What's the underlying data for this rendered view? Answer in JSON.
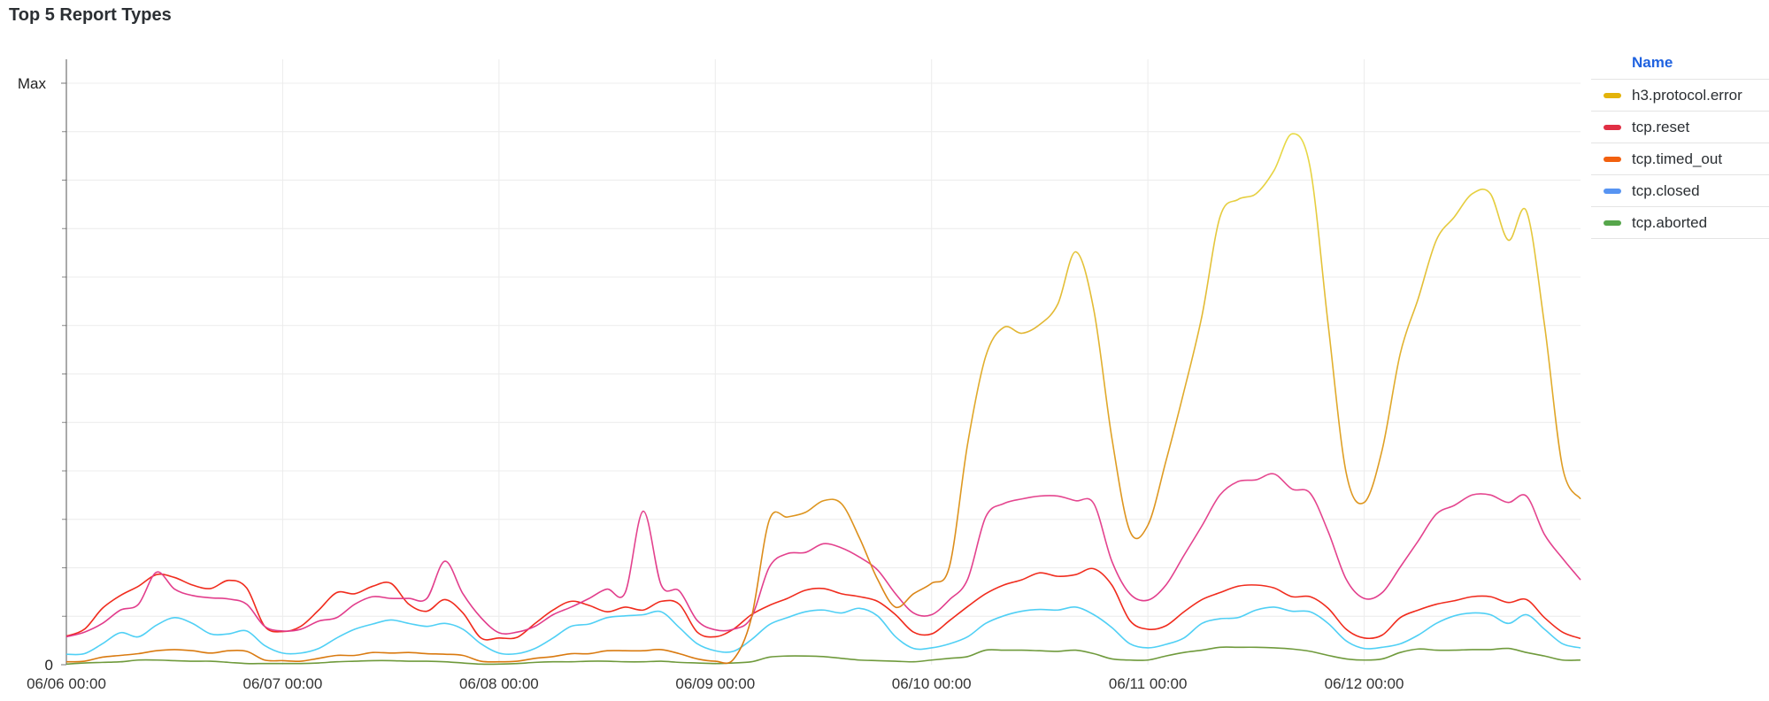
{
  "title": "Top 5 Report Types",
  "legend": {
    "header": "Name",
    "items": [
      {
        "label": "h3.protocol.error",
        "color": "#e3b30a"
      },
      {
        "label": "tcp.reset",
        "color": "#e02f44"
      },
      {
        "label": "tcp.timed_out",
        "color": "#f2600f"
      },
      {
        "label": "tcp.closed",
        "color": "#5794f2"
      },
      {
        "label": "tcp.aborted",
        "color": "#56a64b"
      }
    ]
  },
  "chart_data": {
    "type": "line",
    "title": "Top 5 Report Types",
    "xlabel": "",
    "ylabel": "",
    "ylim": [
      0,
      1
    ],
    "y_tick_labels": [
      "0",
      "Max"
    ],
    "x_ticks": [
      "06/06 00:00",
      "06/07 00:00",
      "06/08 00:00",
      "06/09 00:00",
      "06/10 00:00",
      "06/11 00:00",
      "06/12 00:00"
    ],
    "xlim": [
      "06/06 00:00",
      "06/13 00:00"
    ],
    "grid": true,
    "legend_position": "right",
    "x": [
      "06/06 00:00",
      "06/06 02:00",
      "06/06 04:00",
      "06/06 06:00",
      "06/06 08:00",
      "06/06 10:00",
      "06/06 12:00",
      "06/06 14:00",
      "06/06 16:00",
      "06/06 18:00",
      "06/06 20:00",
      "06/06 22:00",
      "06/07 00:00",
      "06/07 02:00",
      "06/07 04:00",
      "06/07 06:00",
      "06/07 08:00",
      "06/07 10:00",
      "06/07 12:00",
      "06/07 14:00",
      "06/07 16:00",
      "06/07 18:00",
      "06/07 20:00",
      "06/07 22:00",
      "06/08 00:00",
      "06/08 02:00",
      "06/08 04:00",
      "06/08 06:00",
      "06/08 08:00",
      "06/08 10:00",
      "06/08 12:00",
      "06/08 14:00",
      "06/08 16:00",
      "06/08 18:00",
      "06/08 20:00",
      "06/08 22:00",
      "06/09 00:00",
      "06/09 02:00",
      "06/09 04:00",
      "06/09 06:00",
      "06/09 08:00",
      "06/09 10:00",
      "06/09 12:00",
      "06/09 14:00",
      "06/09 16:00",
      "06/09 18:00",
      "06/09 20:00",
      "06/09 22:00",
      "06/10 00:00",
      "06/10 02:00",
      "06/10 04:00",
      "06/10 06:00",
      "06/10 08:00",
      "06/10 10:00",
      "06/10 12:00",
      "06/10 14:00",
      "06/10 16:00",
      "06/10 18:00",
      "06/10 20:00",
      "06/10 22:00",
      "06/11 00:00",
      "06/11 02:00",
      "06/11 04:00",
      "06/11 06:00",
      "06/11 08:00",
      "06/11 10:00",
      "06/11 12:00",
      "06/11 14:00",
      "06/11 16:00",
      "06/11 18:00",
      "06/11 20:00",
      "06/11 22:00",
      "06/12 00:00",
      "06/12 02:00",
      "06/12 04:00",
      "06/12 06:00",
      "06/12 08:00",
      "06/12 10:00",
      "06/12 12:00",
      "06/12 14:00",
      "06/12 16:00",
      "06/12 18:00",
      "06/12 20:00",
      "06/12 22:00",
      "06/13 00:00"
    ],
    "series": [
      {
        "name": "h3.protocol.error",
        "line_color_low": "#d9780f",
        "line_color_high": "#e9e44c",
        "values": [
          0.005,
          0.006,
          0.013,
          0.016,
          0.019,
          0.024,
          0.026,
          0.024,
          0.02,
          0.024,
          0.023,
          0.008,
          0.007,
          0.006,
          0.011,
          0.016,
          0.016,
          0.021,
          0.02,
          0.021,
          0.019,
          0.018,
          0.016,
          0.006,
          0.005,
          0.006,
          0.011,
          0.014,
          0.019,
          0.019,
          0.024,
          0.024,
          0.024,
          0.026,
          0.019,
          0.01,
          0.006,
          0.009,
          0.08,
          0.249,
          0.254,
          0.262,
          0.282,
          0.277,
          0.218,
          0.147,
          0.099,
          0.122,
          0.14,
          0.17,
          0.38,
          0.53,
          0.58,
          0.57,
          0.585,
          0.62,
          0.71,
          0.61,
          0.39,
          0.23,
          0.24,
          0.35,
          0.47,
          0.6,
          0.77,
          0.8,
          0.81,
          0.85,
          0.913,
          0.855,
          0.585,
          0.33,
          0.279,
          0.37,
          0.535,
          0.63,
          0.73,
          0.77,
          0.81,
          0.81,
          0.73,
          0.78,
          0.585,
          0.34,
          0.285
        ]
      },
      {
        "name": "tcp.reset",
        "line_color_low": "#e0388a",
        "line_color_high": "#f06a9c",
        "values": [
          0.048,
          0.056,
          0.071,
          0.094,
          0.104,
          0.159,
          0.13,
          0.119,
          0.115,
          0.113,
          0.104,
          0.066,
          0.058,
          0.061,
          0.075,
          0.081,
          0.104,
          0.117,
          0.114,
          0.114,
          0.114,
          0.178,
          0.122,
          0.081,
          0.055,
          0.056,
          0.066,
          0.086,
          0.099,
          0.114,
          0.13,
          0.124,
          0.264,
          0.137,
          0.127,
          0.076,
          0.06,
          0.061,
          0.081,
          0.168,
          0.191,
          0.193,
          0.208,
          0.201,
          0.185,
          0.163,
          0.122,
          0.089,
          0.086,
          0.112,
          0.147,
          0.254,
          0.277,
          0.285,
          0.29,
          0.29,
          0.282,
          0.277,
          0.178,
          0.122,
          0.111,
          0.137,
          0.188,
          0.239,
          0.292,
          0.315,
          0.318,
          0.328,
          0.302,
          0.295,
          0.229,
          0.147,
          0.114,
          0.124,
          0.168,
          0.213,
          0.259,
          0.274,
          0.292,
          0.292,
          0.279,
          0.29,
          0.224,
          0.183,
          0.146
        ]
      },
      {
        "name": "tcp.timed_out",
        "line_color_low": "#f0281a",
        "line_color_high": "#f24a3a",
        "values": [
          0.049,
          0.061,
          0.097,
          0.119,
          0.135,
          0.155,
          0.15,
          0.137,
          0.131,
          0.145,
          0.132,
          0.066,
          0.057,
          0.066,
          0.094,
          0.124,
          0.122,
          0.135,
          0.14,
          0.104,
          0.092,
          0.112,
          0.089,
          0.046,
          0.046,
          0.047,
          0.071,
          0.094,
          0.109,
          0.102,
          0.091,
          0.099,
          0.094,
          0.109,
          0.104,
          0.056,
          0.048,
          0.061,
          0.086,
          0.102,
          0.114,
          0.128,
          0.131,
          0.122,
          0.117,
          0.109,
          0.086,
          0.056,
          0.053,
          0.076,
          0.1,
          0.122,
          0.137,
          0.146,
          0.158,
          0.152,
          0.155,
          0.165,
          0.137,
          0.076,
          0.061,
          0.067,
          0.091,
          0.112,
          0.124,
          0.135,
          0.137,
          0.132,
          0.117,
          0.117,
          0.097,
          0.061,
          0.046,
          0.051,
          0.081,
          0.094,
          0.104,
          0.11,
          0.117,
          0.117,
          0.107,
          0.112,
          0.081,
          0.056,
          0.045
        ]
      },
      {
        "name": "tcp.closed",
        "line_color_low": "#4fd0f5",
        "line_color_high": "#5cc8f0",
        "values": [
          0.018,
          0.019,
          0.036,
          0.055,
          0.048,
          0.068,
          0.081,
          0.071,
          0.053,
          0.053,
          0.058,
          0.033,
          0.02,
          0.02,
          0.028,
          0.046,
          0.061,
          0.07,
          0.077,
          0.071,
          0.066,
          0.071,
          0.061,
          0.036,
          0.02,
          0.019,
          0.028,
          0.046,
          0.066,
          0.07,
          0.081,
          0.084,
          0.086,
          0.091,
          0.064,
          0.036,
          0.024,
          0.023,
          0.043,
          0.069,
          0.081,
          0.091,
          0.094,
          0.089,
          0.097,
          0.084,
          0.048,
          0.028,
          0.029,
          0.036,
          0.048,
          0.071,
          0.084,
          0.092,
          0.095,
          0.094,
          0.099,
          0.086,
          0.064,
          0.036,
          0.029,
          0.035,
          0.046,
          0.071,
          0.079,
          0.081,
          0.094,
          0.099,
          0.092,
          0.091,
          0.071,
          0.041,
          0.028,
          0.03,
          0.036,
          0.051,
          0.071,
          0.084,
          0.089,
          0.086,
          0.071,
          0.086,
          0.061,
          0.036,
          0.029
        ]
      },
      {
        "name": "tcp.aborted",
        "line_color_low": "#6f9a3c",
        "line_color_high": "#7aa04a",
        "values": [
          0.001,
          0.003,
          0.004,
          0.005,
          0.008,
          0.008,
          0.007,
          0.006,
          0.006,
          0.004,
          0.002,
          0.002,
          0.002,
          0.002,
          0.003,
          0.005,
          0.006,
          0.007,
          0.007,
          0.006,
          0.006,
          0.005,
          0.003,
          0.001,
          0.001,
          0.002,
          0.004,
          0.005,
          0.005,
          0.006,
          0.006,
          0.005,
          0.005,
          0.006,
          0.004,
          0.003,
          0.002,
          0.003,
          0.005,
          0.013,
          0.015,
          0.015,
          0.014,
          0.011,
          0.008,
          0.007,
          0.006,
          0.005,
          0.008,
          0.011,
          0.014,
          0.025,
          0.025,
          0.025,
          0.024,
          0.023,
          0.025,
          0.019,
          0.01,
          0.008,
          0.008,
          0.015,
          0.021,
          0.025,
          0.03,
          0.03,
          0.03,
          0.029,
          0.027,
          0.023,
          0.016,
          0.01,
          0.008,
          0.01,
          0.021,
          0.027,
          0.025,
          0.025,
          0.026,
          0.026,
          0.028,
          0.021,
          0.015,
          0.008,
          0.008
        ]
      }
    ]
  }
}
